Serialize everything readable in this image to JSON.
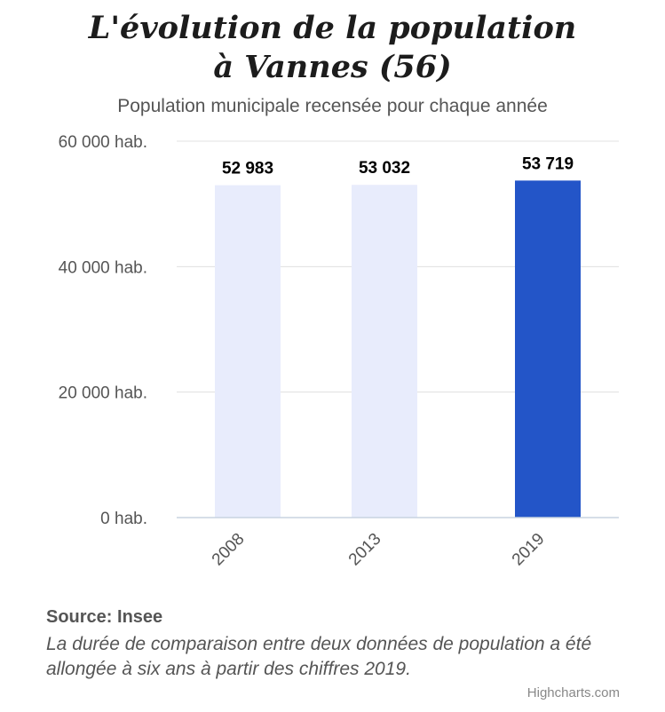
{
  "chart_data": {
    "type": "bar",
    "title_lines": [
      "L'évolution de la population",
      "à Vannes (56)"
    ],
    "subtitle": "Population municipale recensée pour chaque année",
    "categories": [
      "2008",
      "2013",
      "2019"
    ],
    "values": [
      52983,
      53032,
      53719
    ],
    "data_labels": [
      "52 983",
      "53 032",
      "53 719"
    ],
    "ylim": [
      0,
      60000
    ],
    "y_ticks": [
      0,
      20000,
      40000,
      60000
    ],
    "y_tick_labels": [
      "0 hab.",
      "20 000 hab.",
      "40 000 hab.",
      "60 000 hab."
    ],
    "xlabel": "",
    "ylabel": "",
    "grid": true,
    "colors": [
      "#e8ecfc",
      "#e8ecfc",
      "#2355c8"
    ]
  },
  "source": "Source: Insee",
  "note": "La durée de comparaison entre deux données de population a été allongée à six ans à partir des chiffres 2019.",
  "credits": "Highcharts.com",
  "colors": {
    "grid": "#e0e0e0",
    "axis": "#c8d3e0",
    "text": "#555555",
    "label": "#000000"
  }
}
